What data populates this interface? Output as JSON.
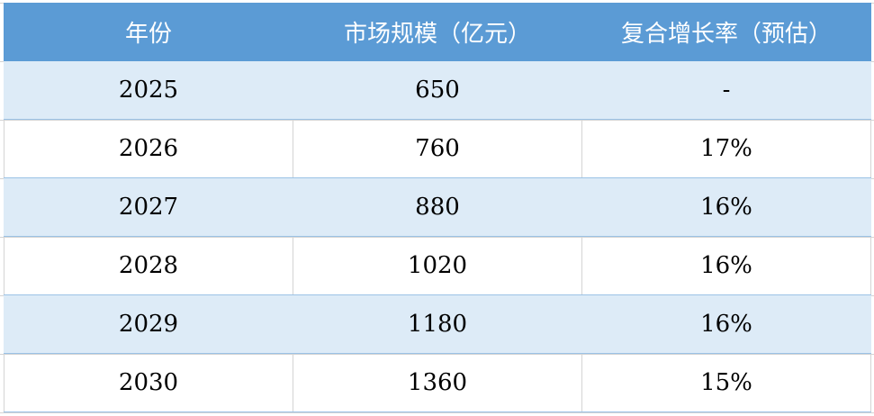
{
  "table": {
    "headers": [
      "年份",
      "市场规模（亿元）",
      "复合增长率（预估）"
    ],
    "rows": [
      [
        "2025",
        "650",
        "-"
      ],
      [
        "2026",
        "760",
        "17%"
      ],
      [
        "2027",
        "880",
        "16%"
      ],
      [
        "2028",
        "1020",
        "16%"
      ],
      [
        "2029",
        "1180",
        "16%"
      ],
      [
        "2030",
        "1360",
        "15%"
      ]
    ]
  },
  "colors": {
    "header_bg": "#5b9bd5",
    "band_bg": "#ddebf7"
  }
}
